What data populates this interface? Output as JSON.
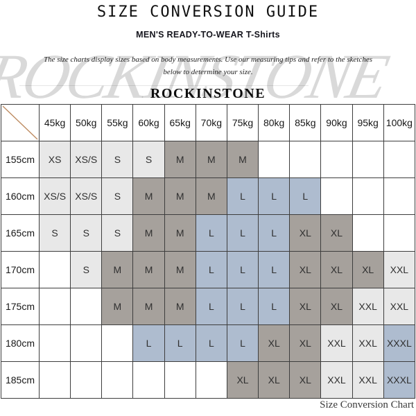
{
  "header": {
    "title": "SIZE CONVERSION GUIDE",
    "subtitle": "MEN'S READY-TO-WEAR T-Shirts",
    "description_line1": "The size charts display sizes based on body measurements. Use our measuring tips and refer to the sketches",
    "description_line2": "below to determine your size.",
    "brand": "ROCKINSTONE"
  },
  "watermark": {
    "text": "ROCKINSTONE"
  },
  "footer": {
    "caption": "Size Conversion Chart"
  },
  "colors": {
    "cell_light": "#e8e8e8",
    "cell_dark": "#a6a19c",
    "cell_blue": "#aebccf",
    "cell_text": "#2f2f2f",
    "border": "#3d3d3d",
    "diagonal": "#bd8a5f",
    "watermark": "rgba(120,120,120,0.28)"
  },
  "chart_data": {
    "type": "table",
    "title": "SIZE CONVERSION GUIDE",
    "weights": [
      "45kg",
      "50kg",
      "55kg",
      "60kg",
      "65kg",
      "70kg",
      "75kg",
      "80kg",
      "85kg",
      "90kg",
      "95kg",
      "100kg"
    ],
    "rows": [
      {
        "height": "155cm",
        "cells": [
          {
            "v": "XS",
            "c": "light"
          },
          {
            "v": "XS/S",
            "c": "light"
          },
          {
            "v": "S",
            "c": "light"
          },
          {
            "v": "S",
            "c": "light"
          },
          {
            "v": "M",
            "c": "dark"
          },
          {
            "v": "M",
            "c": "dark"
          },
          {
            "v": "M",
            "c": "dark"
          },
          {
            "v": "",
            "c": ""
          },
          {
            "v": "",
            "c": ""
          },
          {
            "v": "",
            "c": ""
          },
          {
            "v": "",
            "c": ""
          },
          {
            "v": "",
            "c": ""
          }
        ]
      },
      {
        "height": "160cm",
        "cells": [
          {
            "v": "XS/S",
            "c": "light"
          },
          {
            "v": "XS/S",
            "c": "light"
          },
          {
            "v": "S",
            "c": "light"
          },
          {
            "v": "M",
            "c": "dark"
          },
          {
            "v": "M",
            "c": "dark"
          },
          {
            "v": "M",
            "c": "dark"
          },
          {
            "v": "L",
            "c": "blue"
          },
          {
            "v": "L",
            "c": "blue"
          },
          {
            "v": "L",
            "c": "blue"
          },
          {
            "v": "",
            "c": ""
          },
          {
            "v": "",
            "c": ""
          },
          {
            "v": "",
            "c": ""
          }
        ]
      },
      {
        "height": "165cm",
        "cells": [
          {
            "v": "S",
            "c": "light"
          },
          {
            "v": "S",
            "c": "light"
          },
          {
            "v": "S",
            "c": "light"
          },
          {
            "v": "M",
            "c": "dark"
          },
          {
            "v": "M",
            "c": "dark"
          },
          {
            "v": "L",
            "c": "blue"
          },
          {
            "v": "L",
            "c": "blue"
          },
          {
            "v": "L",
            "c": "blue"
          },
          {
            "v": "XL",
            "c": "dark"
          },
          {
            "v": "XL",
            "c": "dark"
          },
          {
            "v": "",
            "c": ""
          },
          {
            "v": "",
            "c": ""
          }
        ]
      },
      {
        "height": "170cm",
        "cells": [
          {
            "v": "",
            "c": ""
          },
          {
            "v": "S",
            "c": "light"
          },
          {
            "v": "M",
            "c": "dark"
          },
          {
            "v": "M",
            "c": "dark"
          },
          {
            "v": "M",
            "c": "dark"
          },
          {
            "v": "L",
            "c": "blue"
          },
          {
            "v": "L",
            "c": "blue"
          },
          {
            "v": "L",
            "c": "blue"
          },
          {
            "v": "XL",
            "c": "dark"
          },
          {
            "v": "XL",
            "c": "dark"
          },
          {
            "v": "XL",
            "c": "dark"
          },
          {
            "v": "XXL",
            "c": "light"
          }
        ]
      },
      {
        "height": "175cm",
        "cells": [
          {
            "v": "",
            "c": ""
          },
          {
            "v": "",
            "c": ""
          },
          {
            "v": "M",
            "c": "dark"
          },
          {
            "v": "M",
            "c": "dark"
          },
          {
            "v": "M",
            "c": "dark"
          },
          {
            "v": "L",
            "c": "blue"
          },
          {
            "v": "L",
            "c": "blue"
          },
          {
            "v": "L",
            "c": "blue"
          },
          {
            "v": "XL",
            "c": "dark"
          },
          {
            "v": "XL",
            "c": "dark"
          },
          {
            "v": "XXL",
            "c": "light"
          },
          {
            "v": "XXL",
            "c": "light"
          }
        ]
      },
      {
        "height": "180cm",
        "cells": [
          {
            "v": "",
            "c": ""
          },
          {
            "v": "",
            "c": ""
          },
          {
            "v": "",
            "c": ""
          },
          {
            "v": "L",
            "c": "blue"
          },
          {
            "v": "L",
            "c": "blue"
          },
          {
            "v": "L",
            "c": "blue"
          },
          {
            "v": "L",
            "c": "blue"
          },
          {
            "v": "XL",
            "c": "dark"
          },
          {
            "v": "XL",
            "c": "dark"
          },
          {
            "v": "XXL",
            "c": "light"
          },
          {
            "v": "XXL",
            "c": "light"
          },
          {
            "v": "XXXL",
            "c": "blue"
          }
        ]
      },
      {
        "height": "185cm",
        "cells": [
          {
            "v": "",
            "c": ""
          },
          {
            "v": "",
            "c": ""
          },
          {
            "v": "",
            "c": ""
          },
          {
            "v": "",
            "c": ""
          },
          {
            "v": "",
            "c": ""
          },
          {
            "v": "",
            "c": ""
          },
          {
            "v": "XL",
            "c": "dark"
          },
          {
            "v": "XL",
            "c": "dark"
          },
          {
            "v": "XL",
            "c": "dark"
          },
          {
            "v": "XXL",
            "c": "light"
          },
          {
            "v": "XXL",
            "c": "light"
          },
          {
            "v": "XXXL",
            "c": "blue"
          }
        ]
      }
    ]
  }
}
